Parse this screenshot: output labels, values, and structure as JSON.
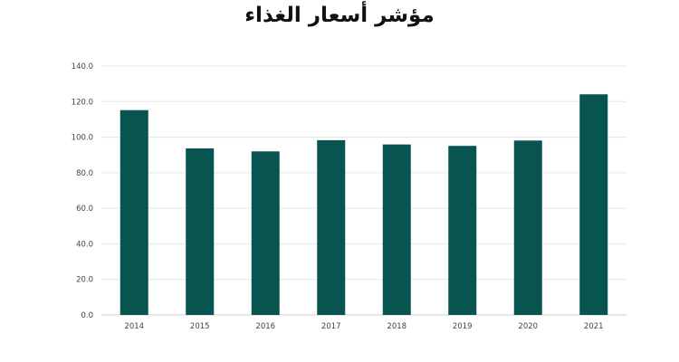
{
  "chart_data": {
    "type": "bar",
    "title": "مؤشر أسعار الغذاء",
    "categories": [
      "2014",
      "2015",
      "2016",
      "2017",
      "2018",
      "2019",
      "2020",
      "2021"
    ],
    "values": [
      115.2,
      93.7,
      92.0,
      98.3,
      95.9,
      95.1,
      98.1,
      124.1
    ],
    "ylim": [
      0,
      140
    ],
    "yticks": [
      "0.0",
      "20.0",
      "40.0",
      "60.0",
      "80.0",
      "100.0",
      "120.0",
      "140.0"
    ],
    "grid": true,
    "legend": "none",
    "bar_color": "#075450"
  }
}
